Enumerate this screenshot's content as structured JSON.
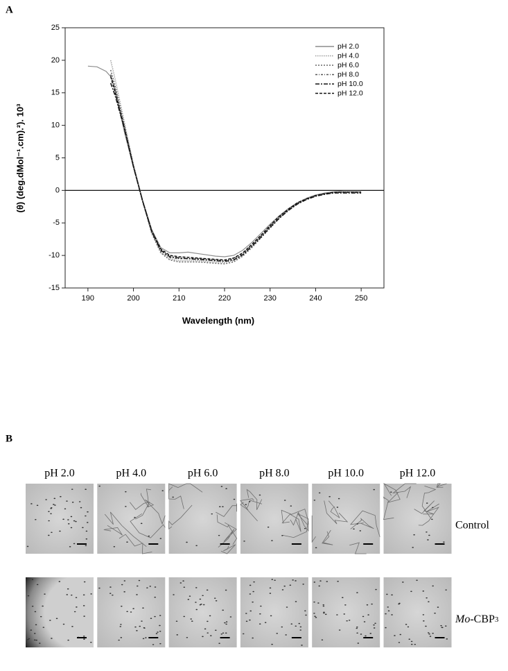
{
  "panel_labels": [
    "A",
    "B"
  ],
  "chart_data": {
    "type": "line",
    "x_label": "Wavelength (nm)",
    "y_label": "(θ) (deg.dMol⁻¹.cm).²). 10³",
    "x": [
      190,
      192,
      194,
      195,
      196,
      198,
      200,
      202,
      204,
      206,
      208,
      210,
      212,
      214,
      216,
      218,
      220,
      222,
      224,
      226,
      228,
      230,
      232,
      234,
      236,
      238,
      240,
      242,
      244,
      246,
      248,
      250
    ],
    "xlim": [
      185,
      255
    ],
    "xticks": [
      190,
      200,
      210,
      220,
      230,
      240,
      250
    ],
    "ylim": [
      -15,
      25
    ],
    "yticks": [
      -15,
      -10,
      -5,
      0,
      5,
      10,
      15,
      20,
      25
    ],
    "hline": 0,
    "series": [
      {
        "name": "pH 2.0",
        "color": "#8c8c8c",
        "dash": "none",
        "values": [
          19.1,
          19.0,
          18.3,
          17.5,
          15.5,
          9.0,
          3.5,
          -1.5,
          -6.0,
          -8.8,
          -9.6,
          -9.6,
          -9.5,
          -9.7,
          -9.9,
          -10.1,
          -10.2,
          -10.0,
          -9.2,
          -8.0,
          -6.6,
          -5.2,
          -3.9,
          -2.8,
          -1.9,
          -1.2,
          -0.7,
          -0.4,
          -0.2,
          -0.1,
          -0.1,
          -0.1
        ]
      },
      {
        "name": "pH 4.0",
        "color": "#9a9a9a",
        "dash": "1.5 1.5",
        "values": [
          null,
          null,
          null,
          20.0,
          17.0,
          10.5,
          4.0,
          -1.5,
          -6.5,
          -9.5,
          -10.5,
          -10.8,
          -10.8,
          -10.8,
          -10.9,
          -11.0,
          -11.1,
          -10.8,
          -9.9,
          -8.6,
          -7.1,
          -5.6,
          -4.2,
          -3.0,
          -2.0,
          -1.3,
          -0.8,
          -0.5,
          -0.3,
          -0.2,
          -0.2,
          -0.2
        ]
      },
      {
        "name": "pH 6.0",
        "color": "#666666",
        "dash": "2 2",
        "values": [
          null,
          null,
          null,
          18.5,
          16.0,
          10.0,
          3.8,
          -1.6,
          -6.6,
          -9.6,
          -10.7,
          -11.0,
          -11.0,
          -11.0,
          -11.1,
          -11.2,
          -11.3,
          -11.0,
          -10.1,
          -8.8,
          -7.3,
          -5.8,
          -4.3,
          -3.1,
          -2.1,
          -1.4,
          -0.9,
          -0.5,
          -0.3,
          -0.3,
          -0.3,
          -0.3
        ]
      },
      {
        "name": "pH 8.0",
        "color": "#555555",
        "dash": "3 2 1 2",
        "values": [
          null,
          null,
          null,
          17.8,
          15.5,
          9.8,
          3.6,
          -1.7,
          -6.4,
          -9.3,
          -10.3,
          -10.5,
          -10.5,
          -10.5,
          -10.6,
          -10.7,
          -10.8,
          -10.5,
          -9.7,
          -8.4,
          -7.0,
          -5.5,
          -4.1,
          -2.9,
          -2.0,
          -1.3,
          -0.8,
          -0.5,
          -0.3,
          -0.3,
          -0.3,
          -0.4
        ]
      },
      {
        "name": "pH 10.0",
        "color": "#111111",
        "dash": "6 2 2 2",
        "values": [
          null,
          null,
          null,
          16.5,
          14.5,
          9.5,
          3.6,
          -1.6,
          -6.3,
          -9.2,
          -10.2,
          -10.4,
          -10.5,
          -10.6,
          -10.7,
          -10.8,
          -10.9,
          -10.7,
          -9.9,
          -8.6,
          -7.2,
          -5.7,
          -4.3,
          -3.1,
          -2.1,
          -1.4,
          -0.9,
          -0.6,
          -0.4,
          -0.4,
          -0.4,
          -0.4
        ]
      },
      {
        "name": "pH 12.0",
        "color": "#111111",
        "dash": "4 2",
        "values": [
          null,
          null,
          null,
          17.5,
          15.0,
          9.6,
          3.7,
          -1.6,
          -6.2,
          -9.0,
          -10.0,
          -10.2,
          -10.3,
          -10.4,
          -10.5,
          -10.6,
          -10.7,
          -10.4,
          -9.6,
          -8.3,
          -6.9,
          -5.4,
          -4.0,
          -2.9,
          -1.9,
          -1.3,
          -0.8,
          -0.5,
          -0.3,
          -0.3,
          -0.3,
          -0.3
        ]
      }
    ]
  },
  "micrographs": {
    "columns": [
      "pH 2.0",
      "pH 4.0",
      "pH 6.0",
      "pH 8.0",
      "pH 10.0",
      "pH 12.0"
    ],
    "rows": [
      {
        "label": "Control"
      },
      {
        "label_italic": "Mo",
        "label_rest": "-CBP",
        "label_small": "3"
      }
    ]
  }
}
